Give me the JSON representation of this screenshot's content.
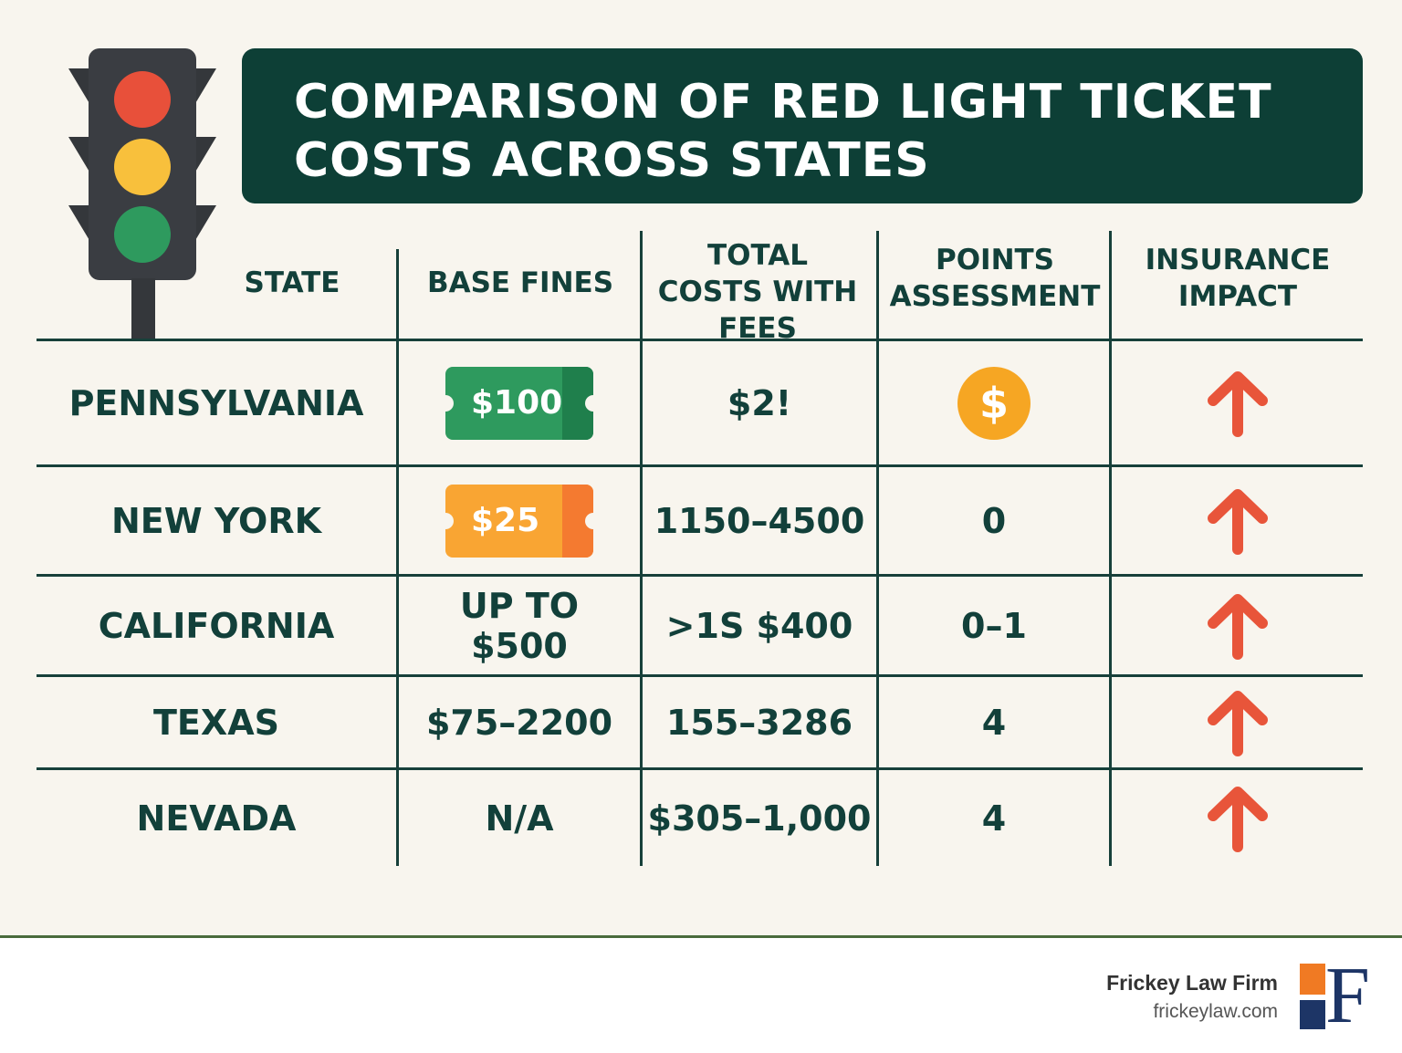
{
  "title": "COMPARISON OF RED LIGHT TICKET COSTS ACROSS STATES",
  "colors": {
    "header_bg": "#0d3f36",
    "text": "#12403a",
    "green_ticket": "#2e9a5e",
    "orange_ticket": "#f9a533",
    "coin": "#f6a623",
    "arrow": "#e8553a"
  },
  "columns": [
    "STATE",
    "BASE FINES",
    "TOTAL COSTS WITH FEES",
    "POINTS ASSESSMENT",
    "INSURANCE IMPACT"
  ],
  "rows": [
    {
      "state": "PENNSYLVANIA",
      "base": "$100",
      "base_style": "green-ticket",
      "total": "$2!",
      "points": "$",
      "points_style": "coin-icon",
      "insurance": "arrow-up-icon"
    },
    {
      "state": "NEW YORK",
      "base": "$25",
      "base_style": "orange-ticket",
      "total": "1150–4500",
      "points": "0",
      "insurance": "arrow-up-icon"
    },
    {
      "state": "CALIFORNIA",
      "base": "UP TO $500",
      "total": ">1S $400",
      "points": "0–1",
      "insurance": "arrow-up-icon"
    },
    {
      "state": "TEXAS",
      "base": "$75–2200",
      "total": "155–3286",
      "points": "4",
      "insurance": "arrow-up-icon"
    },
    {
      "state": "NEVADA",
      "base": "N/A",
      "total": "$305–1,000",
      "points": "4",
      "insurance": "arrow-up-icon"
    }
  ],
  "footer": {
    "firm": "Frickey Law Firm",
    "url": "frickeylaw.com",
    "logo_letter": "F"
  }
}
